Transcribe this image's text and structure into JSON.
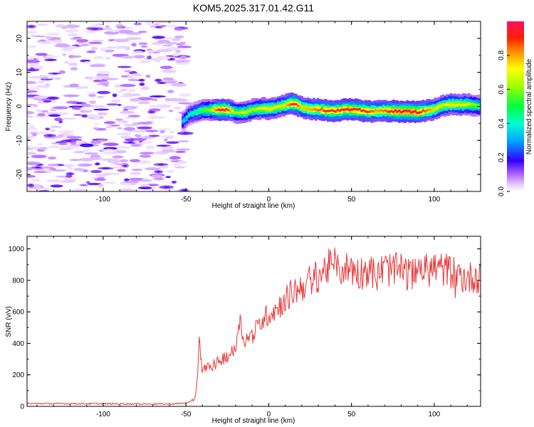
{
  "title": "KOM5.2025.317.01.42.G11",
  "chart_data": [
    {
      "type": "heatmap",
      "title": "KOM5.2025.317.01.42.G11",
      "xlabel": "Height of straight line (km)",
      "ylabel": "Frequency (Hz)",
      "xlim": [
        -146,
        128
      ],
      "ylim": [
        -25,
        25
      ],
      "xticks": [
        -100,
        -50,
        0,
        50,
        100
      ],
      "xtick_labels": [
        "-100",
        "-50",
        "0",
        "50",
        "100"
      ],
      "yticks": [
        -20,
        -10,
        0,
        10,
        20
      ],
      "ytick_labels": [
        "-20",
        "-10",
        "0",
        "10",
        "20"
      ],
      "noise_region_km": [
        -146,
        -50
      ],
      "signal_track": {
        "x": [
          -52,
          -48,
          -45,
          -40,
          -35,
          -30,
          -25,
          -20,
          -15,
          -10,
          -5,
          0,
          5,
          10,
          15,
          20,
          25,
          30,
          35,
          40,
          45,
          50,
          55,
          60,
          65,
          70,
          75,
          80,
          85,
          90,
          95,
          100,
          105,
          110,
          115,
          120,
          125,
          128
        ],
        "freq_hz": [
          -4.5,
          -2.5,
          -1.8,
          -1.2,
          -1.0,
          -0.9,
          -1.0,
          -1.8,
          -1.8,
          -1.0,
          -0.6,
          -0.7,
          -0.3,
          0.4,
          0.9,
          -0.3,
          -0.8,
          -0.9,
          -1.2,
          -1.3,
          -1.0,
          -1.0,
          -1.1,
          -1.5,
          -1.4,
          -1.3,
          -1.4,
          -1.5,
          -1.5,
          -1.7,
          -1.3,
          -0.8,
          0.2,
          0.6,
          0.5,
          0.6,
          0.3,
          0.0
        ],
        "amplitude": [
          0.35,
          0.4,
          0.45,
          0.55,
          0.65,
          0.95,
          0.9,
          0.6,
          0.7,
          0.65,
          0.7,
          0.75,
          0.7,
          0.75,
          0.95,
          0.75,
          0.8,
          0.85,
          0.9,
          0.9,
          0.92,
          0.95,
          0.9,
          0.9,
          0.8,
          0.85,
          0.95,
          0.97,
          0.98,
          0.95,
          0.85,
          0.75,
          0.7,
          0.75,
          0.72,
          0.7,
          0.6,
          0.55
        ]
      },
      "colorbar": {
        "label": "Normalized spectral amplitude",
        "range": [
          0,
          1
        ],
        "ticks": [
          0.0,
          0.2,
          0.4,
          0.6,
          0.8
        ],
        "tick_labels": [
          "0.0",
          "0.2",
          "0.4",
          "0.6",
          "0.8"
        ]
      }
    },
    {
      "type": "line",
      "xlabel": "Height of straight line (km)",
      "ylabel": "SNR (v/v)",
      "xlim": [
        -146,
        128
      ],
      "ylim": [
        0,
        1080
      ],
      "xticks": [
        -100,
        -50,
        0,
        50,
        100
      ],
      "xtick_labels": [
        "-100",
        "-50",
        "0",
        "50",
        "100"
      ],
      "yticks": [
        0,
        200,
        400,
        600,
        800,
        1000
      ],
      "ytick_labels": [
        "0",
        "200",
        "400",
        "600",
        "800",
        "1000"
      ],
      "color": "#e8383a",
      "series": [
        {
          "name": "SNR",
          "x": [
            -146,
            -60,
            -48,
            -45,
            -43,
            -42,
            -40,
            -38,
            -35,
            -30,
            -25,
            -20,
            -18,
            -15,
            -10,
            -5,
            0,
            5,
            10,
            15,
            20,
            25,
            30,
            35,
            40,
            45,
            50,
            55,
            60,
            65,
            70,
            75,
            80,
            85,
            90,
            95,
            100,
            105,
            110,
            115,
            120,
            125,
            128
          ],
          "values": [
            18,
            15,
            22,
            60,
            160,
            420,
            200,
            270,
            230,
            290,
            320,
            360,
            570,
            420,
            450,
            530,
            590,
            620,
            680,
            730,
            760,
            800,
            830,
            880,
            900,
            870,
            880,
            840,
            880,
            820,
            880,
            860,
            870,
            830,
            890,
            860,
            880,
            870,
            860,
            830,
            810,
            830,
            810
          ]
        }
      ]
    }
  ]
}
